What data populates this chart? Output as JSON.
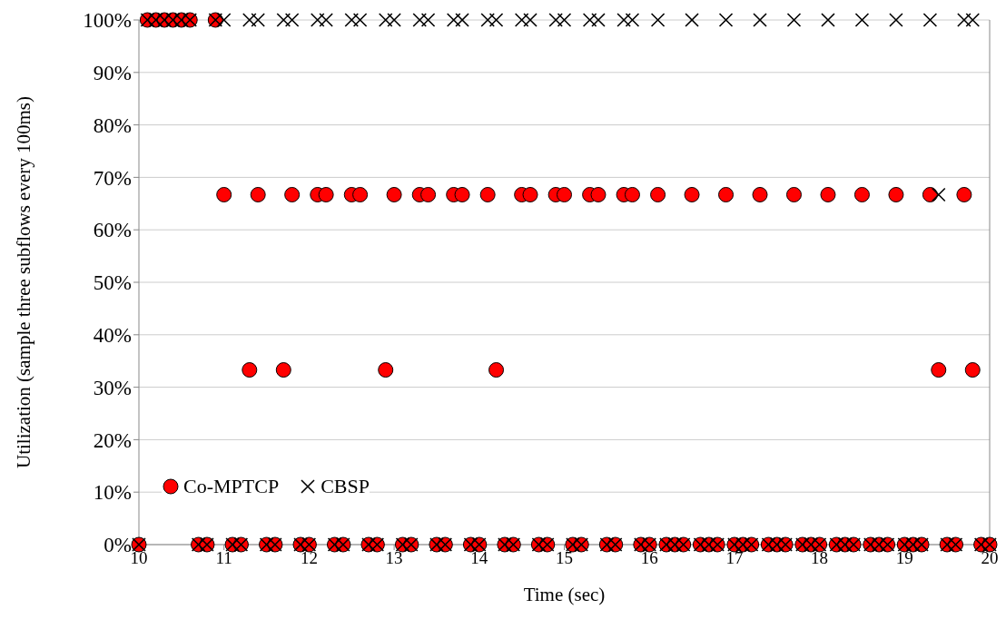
{
  "chart_data": {
    "type": "scatter",
    "xlabel": "Time (sec)",
    "ylabel": "Utilization (sample three subflows every 100ms)",
    "xlim": [
      10,
      20
    ],
    "xticks": [
      10,
      11,
      12,
      13,
      14,
      15,
      16,
      17,
      18,
      19,
      20
    ],
    "ylim": [
      0,
      100
    ],
    "yticks": [
      {
        "value": 0,
        "label": "0%"
      },
      {
        "value": 10,
        "label": "10%"
      },
      {
        "value": 20,
        "label": "20%"
      },
      {
        "value": 30,
        "label": "30%"
      },
      {
        "value": 40,
        "label": "40%"
      },
      {
        "value": 50,
        "label": "50%"
      },
      {
        "value": 60,
        "label": "60%"
      },
      {
        "value": 70,
        "label": "70%"
      },
      {
        "value": 80,
        "label": "80%"
      },
      {
        "value": 90,
        "label": "90%"
      },
      {
        "value": 100,
        "label": "100%"
      }
    ],
    "grid": "y",
    "legend": "bottom left",
    "series": [
      {
        "name": "Co-MPTCP",
        "color": "#ff0000",
        "marker": "circle",
        "x": [
          10.0,
          10.1,
          10.2,
          10.3,
          10.4,
          10.5,
          10.6,
          10.7,
          10.8,
          10.9,
          11.0,
          11.1,
          11.2,
          11.3,
          11.4,
          11.5,
          11.6,
          11.7,
          11.8,
          11.9,
          12.0,
          12.1,
          12.2,
          12.3,
          12.4,
          12.5,
          12.6,
          12.7,
          12.8,
          12.9,
          13.0,
          13.1,
          13.2,
          13.3,
          13.4,
          13.5,
          13.6,
          13.7,
          13.8,
          13.9,
          14.0,
          14.1,
          14.2,
          14.3,
          14.4,
          14.5,
          14.6,
          14.7,
          14.8,
          14.9,
          15.0,
          15.1,
          15.2,
          15.3,
          15.4,
          15.5,
          15.6,
          15.7,
          15.8,
          15.9,
          16.0,
          16.1,
          16.2,
          16.3,
          16.4,
          16.5,
          16.6,
          16.7,
          16.8,
          16.9,
          17.0,
          17.1,
          17.2,
          17.3,
          17.4,
          17.5,
          17.6,
          17.7,
          17.8,
          17.9,
          18.0,
          18.1,
          18.2,
          18.3,
          18.4,
          18.5,
          18.6,
          18.7,
          18.8,
          18.9,
          19.0,
          19.1,
          19.2,
          19.3,
          19.4,
          19.5,
          19.6,
          19.7,
          19.8,
          19.9,
          20.0
        ],
        "values": [
          0,
          100,
          100,
          100,
          100,
          100,
          100,
          0,
          0,
          100,
          66.7,
          0,
          0,
          33.3,
          66.7,
          0,
          0,
          33.3,
          66.7,
          0,
          0,
          66.7,
          66.7,
          0,
          0,
          66.7,
          66.7,
          0,
          0,
          33.3,
          66.7,
          0,
          0,
          66.7,
          66.7,
          0,
          0,
          66.7,
          66.7,
          0,
          0,
          66.7,
          33.3,
          0,
          0,
          66.7,
          66.7,
          0,
          0,
          66.7,
          66.7,
          0,
          0,
          66.7,
          66.7,
          0,
          0,
          66.7,
          66.7,
          0,
          0,
          66.7,
          0,
          0,
          0,
          66.7,
          0,
          0,
          0,
          66.7,
          0,
          0,
          0,
          66.7,
          0,
          0,
          0,
          66.7,
          0,
          0,
          0,
          66.7,
          0,
          0,
          0,
          66.7,
          0,
          0,
          0,
          66.7,
          0,
          0,
          0,
          66.7,
          33.3,
          0,
          0,
          66.7,
          33.3,
          0,
          0
        ]
      },
      {
        "name": "CBSP",
        "color": "#000000",
        "marker": "cross",
        "x": [
          10.0,
          10.1,
          10.2,
          10.3,
          10.4,
          10.5,
          10.6,
          10.7,
          10.8,
          10.9,
          11.0,
          11.1,
          11.2,
          11.3,
          11.4,
          11.5,
          11.6,
          11.7,
          11.8,
          11.9,
          12.0,
          12.1,
          12.2,
          12.3,
          12.4,
          12.5,
          12.6,
          12.7,
          12.8,
          12.9,
          13.0,
          13.1,
          13.2,
          13.3,
          13.4,
          13.5,
          13.6,
          13.7,
          13.8,
          13.9,
          14.0,
          14.1,
          14.2,
          14.3,
          14.4,
          14.5,
          14.6,
          14.7,
          14.8,
          14.9,
          15.0,
          15.1,
          15.2,
          15.3,
          15.4,
          15.5,
          15.6,
          15.7,
          15.8,
          15.9,
          16.0,
          16.1,
          16.2,
          16.3,
          16.4,
          16.5,
          16.6,
          16.7,
          16.8,
          16.9,
          17.0,
          17.1,
          17.2,
          17.3,
          17.4,
          17.5,
          17.6,
          17.7,
          17.8,
          17.9,
          18.0,
          18.1,
          18.2,
          18.3,
          18.4,
          18.5,
          18.6,
          18.7,
          18.8,
          18.9,
          19.0,
          19.1,
          19.2,
          19.3,
          19.4,
          19.5,
          19.6,
          19.7,
          19.8,
          19.9,
          20.0
        ],
        "values": [
          0,
          100,
          100,
          100,
          100,
          100,
          100,
          0,
          0,
          100,
          100,
          0,
          0,
          100,
          100,
          0,
          0,
          100,
          100,
          0,
          0,
          100,
          100,
          0,
          0,
          100,
          100,
          0,
          0,
          100,
          100,
          0,
          0,
          100,
          100,
          0,
          0,
          100,
          100,
          0,
          0,
          100,
          100,
          0,
          0,
          100,
          100,
          0,
          0,
          100,
          100,
          0,
          0,
          100,
          100,
          0,
          0,
          100,
          100,
          0,
          0,
          100,
          0,
          0,
          0,
          100,
          0,
          0,
          0,
          100,
          0,
          0,
          0,
          100,
          0,
          0,
          0,
          100,
          0,
          0,
          0,
          100,
          0,
          0,
          0,
          100,
          0,
          0,
          0,
          100,
          0,
          0,
          0,
          100,
          66.7,
          0,
          0,
          100,
          100,
          0,
          0
        ]
      }
    ]
  }
}
